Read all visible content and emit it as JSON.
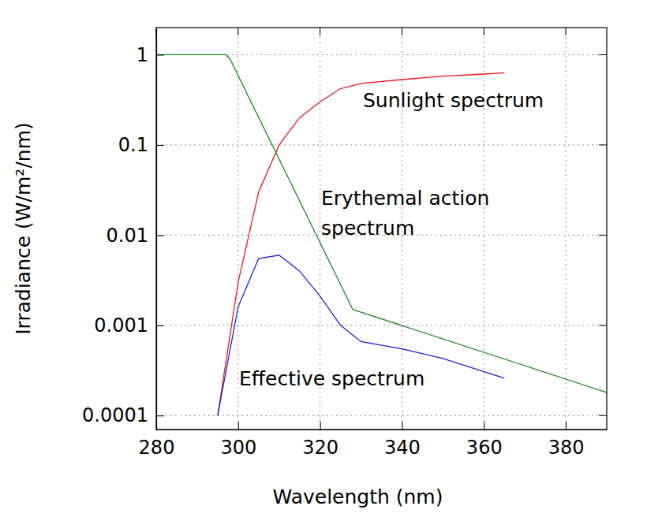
{
  "chart_data": {
    "type": "line",
    "x_label": "Wavelength (nm)",
    "y_label": "Irradiance (W/m²/nm)",
    "log": "y",
    "grid": true,
    "xlim": [
      280,
      390
    ],
    "xticks": [
      280,
      300,
      320,
      340,
      360,
      380
    ],
    "ylim": [
      7e-05,
      2
    ],
    "yticks": [
      0.0001,
      0.001,
      0.01,
      0.1,
      1
    ],
    "series": [
      {
        "name": "Sunlight spectrum",
        "color": "#e8191e",
        "x": [
          295,
          300,
          305,
          310,
          315,
          320,
          325,
          330,
          340,
          350,
          360,
          365
        ],
        "values": [
          0.0001,
          0.003,
          0.03,
          0.1,
          0.2,
          0.3,
          0.42,
          0.48,
          0.53,
          0.58,
          0.61,
          0.63
        ]
      },
      {
        "name": "Erythemal action spectrum",
        "color": "#1a8a1a",
        "x": [
          280,
          297,
          298,
          328,
          390
        ],
        "values": [
          1,
          1,
          0.9,
          0.0015,
          0.00018
        ]
      },
      {
        "name": "Effective spectrum",
        "color": "#1f1fe0",
        "x": [
          295,
          300,
          305,
          310,
          315,
          320,
          325,
          330,
          340,
          350,
          365
        ],
        "values": [
          0.0001,
          0.0016,
          0.0055,
          0.006,
          0.004,
          0.0021,
          0.001,
          0.00066,
          0.00055,
          0.00043,
          0.00026
        ]
      }
    ]
  }
}
